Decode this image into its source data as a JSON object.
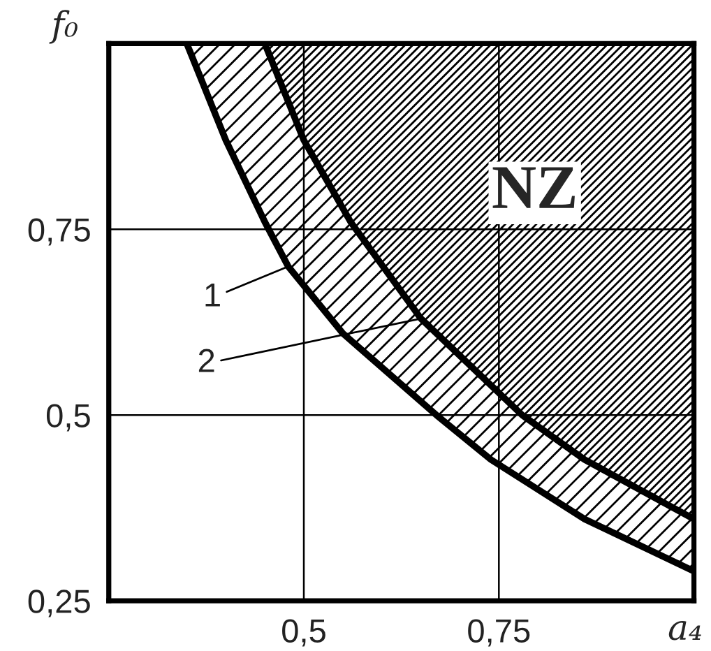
{
  "chart_data": {
    "type": "line",
    "xlabel": "a₄",
    "ylabel": "f₀",
    "xlim": [
      0.25,
      1.0
    ],
    "ylim": [
      0.25,
      1.0
    ],
    "xticks": [
      {
        "value": 0.5,
        "label": "0,5"
      },
      {
        "value": 0.75,
        "label": "0,75"
      }
    ],
    "yticks": [
      {
        "value": 0.25,
        "label": "0,25"
      },
      {
        "value": 0.5,
        "label": "0,5"
      },
      {
        "value": 0.75,
        "label": "0,75"
      }
    ],
    "grid": true,
    "annotations": [
      "NZ"
    ],
    "series": [
      {
        "name": "1",
        "color": "#000000",
        "x": [
          0.35,
          0.4,
          0.45,
          0.48,
          0.55,
          0.67,
          0.74,
          0.86,
          1.0
        ],
        "values": [
          1.0,
          0.87,
          0.76,
          0.7,
          0.61,
          0.5,
          0.44,
          0.36,
          0.29
        ],
        "lower": [
          1.0,
          0.87,
          0.76,
          0.7,
          0.61,
          0.5,
          0.44,
          0.36,
          0.29
        ],
        "upper": [
          1.0,
          1.0,
          1.0,
          1.0,
          1.0,
          1.0,
          1.0,
          1.0,
          1.0
        ]
      },
      {
        "name": "2",
        "color": "#000000",
        "x": [
          0.45,
          0.5,
          0.56,
          0.65,
          0.78,
          0.86,
          1.0
        ],
        "values": [
          1.0,
          0.87,
          0.76,
          0.63,
          0.5,
          0.44,
          0.36
        ],
        "lower": [
          1.0,
          0.87,
          0.76,
          0.63,
          0.5,
          0.44,
          0.36
        ],
        "upper": [
          1.0,
          1.0,
          1.0,
          1.0,
          1.0,
          1.0,
          1.0
        ]
      }
    ]
  }
}
